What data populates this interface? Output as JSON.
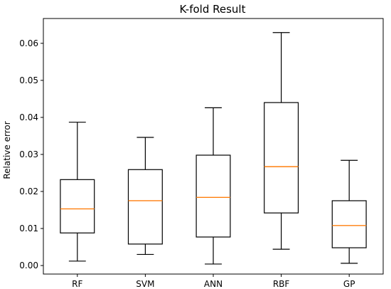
{
  "chart_data": {
    "type": "boxplot",
    "title": "K-fold Result",
    "xlabel": "",
    "ylabel": "Relative   error",
    "categories": [
      "RF",
      "SVM",
      "ANN",
      "RBF",
      "GP"
    ],
    "boxes": [
      {
        "label": "RF",
        "whisker_low": 0.0012,
        "q1": 0.0088,
        "median": 0.0153,
        "q3": 0.0232,
        "whisker_high": 0.0387
      },
      {
        "label": "SVM",
        "whisker_low": 0.003,
        "q1": 0.0058,
        "median": 0.0175,
        "q3": 0.0259,
        "whisker_high": 0.0346
      },
      {
        "label": "ANN",
        "whisker_low": 0.0004,
        "q1": 0.0077,
        "median": 0.0184,
        "q3": 0.0298,
        "whisker_high": 0.0426
      },
      {
        "label": "RBF",
        "whisker_low": 0.0044,
        "q1": 0.0142,
        "median": 0.0267,
        "q3": 0.044,
        "whisker_high": 0.0629
      },
      {
        "label": "GP",
        "whisker_low": 0.0006,
        "q1": 0.0048,
        "median": 0.0108,
        "q3": 0.0175,
        "whisker_high": 0.0284
      }
    ],
    "yticks": [
      0.0,
      0.01,
      0.02,
      0.03,
      0.04,
      0.05,
      0.06
    ],
    "ytick_labels": [
      "0.00",
      "0.01",
      "0.02",
      "0.03",
      "0.04",
      "0.05",
      "0.06"
    ],
    "ylim": [
      -0.0023,
      0.0667
    ],
    "grid": false,
    "box_color": "#000000",
    "median_color": "#ff7f0e"
  }
}
